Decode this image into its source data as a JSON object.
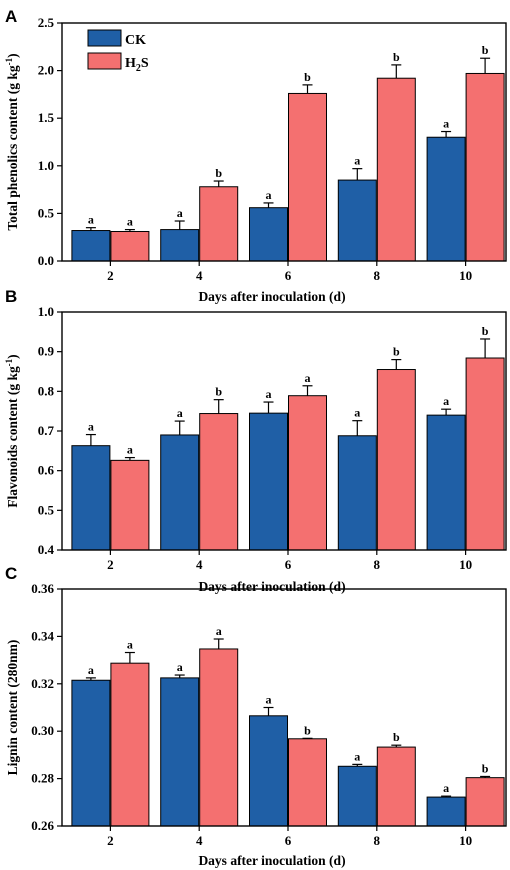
{
  "legend": {
    "entries": [
      {
        "label": "CK",
        "color": "#1f5fa6"
      },
      {
        "label": "H",
        "sub": "2",
        "suffix": "S",
        "color": "#f47070"
      }
    ]
  },
  "chart_data": [
    {
      "panel": "A",
      "type": "bar",
      "categories": [
        "2",
        "4",
        "6",
        "8",
        "10"
      ],
      "xlabel": "Days after inoculation (d)",
      "ylabel": "Total phenolics content (g kg",
      "ylabel_sup": "-1",
      "ylabel_close": ")",
      "ylim": [
        0,
        2.5
      ],
      "yticks": [
        "0.0",
        "0.5",
        "1.0",
        "1.5",
        "2.0",
        "2.5"
      ],
      "tick_step": 0.5,
      "series": [
        {
          "name": "CK",
          "values": [
            0.32,
            0.33,
            0.56,
            0.85,
            1.3
          ],
          "errors": [
            0.03,
            0.09,
            0.05,
            0.12,
            0.06
          ],
          "labels": [
            "a",
            "a",
            "a",
            "a",
            "a"
          ]
        },
        {
          "name": "H2S",
          "values": [
            0.31,
            0.78,
            1.76,
            1.92,
            1.97
          ],
          "errors": [
            0.02,
            0.06,
            0.09,
            0.14,
            0.16
          ],
          "labels": [
            "a",
            "b",
            "b",
            "b",
            "b"
          ]
        }
      ]
    },
    {
      "panel": "B",
      "type": "bar",
      "categories": [
        "2",
        "4",
        "6",
        "8",
        "10"
      ],
      "xlabel": "Days after inoculation (d)",
      "ylabel": "Flavonoids content (g kg",
      "ylabel_sup": "-1",
      "ylabel_close": ")",
      "ylim": [
        0.4,
        1.0
      ],
      "yticks": [
        "0.4",
        "0.5",
        "0.6",
        "0.7",
        "0.8",
        "0.9",
        "1.0"
      ],
      "tick_step": 0.1,
      "series": [
        {
          "name": "CK",
          "values": [
            0.663,
            0.69,
            0.745,
            0.688,
            0.74
          ],
          "errors": [
            0.028,
            0.035,
            0.028,
            0.038,
            0.015
          ],
          "labels": [
            "a",
            "a",
            "a",
            "a",
            "a"
          ]
        },
        {
          "name": "H2S",
          "values": [
            0.626,
            0.744,
            0.789,
            0.855,
            0.884
          ],
          "errors": [
            0.007,
            0.035,
            0.025,
            0.025,
            0.048
          ],
          "labels": [
            "a",
            "b",
            "a",
            "b",
            "b"
          ]
        }
      ]
    },
    {
      "panel": "C",
      "type": "bar",
      "categories": [
        "2",
        "4",
        "6",
        "8",
        "10"
      ],
      "xlabel": "Days after inoculation (d)",
      "ylabel": "Lignin content (280nm)",
      "ylabel_sup": "",
      "ylabel_close": "",
      "ylim": [
        0.26,
        0.36
      ],
      "yticks": [
        "0.26",
        "0.28",
        "0.30",
        "0.32",
        "0.34",
        "0.36"
      ],
      "tick_step": 0.02,
      "series": [
        {
          "name": "CK",
          "values": [
            0.3215,
            0.3225,
            0.3065,
            0.2852,
            0.2722
          ],
          "errors": [
            0.001,
            0.0012,
            0.0035,
            0.0008,
            0.0004
          ],
          "labels": [
            "a",
            "a",
            "a",
            "a",
            "a"
          ]
        },
        {
          "name": "H2S",
          "values": [
            0.3287,
            0.3347,
            0.2968,
            0.2933,
            0.2804
          ],
          "errors": [
            0.0045,
            0.0042,
            0.0002,
            0.0008,
            0.0005
          ],
          "labels": [
            "a",
            "a",
            "b",
            "b",
            "b"
          ]
        }
      ]
    }
  ]
}
